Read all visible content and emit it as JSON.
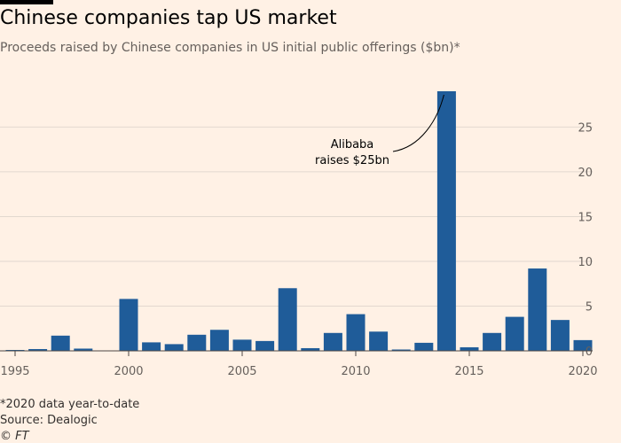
{
  "title": "Chinese companies tap US market",
  "subtitle": "Proceeds raised by Chinese companies in US initial public offerings ($bn)*",
  "footnote": "*2020 data year-to-date",
  "source": "Source: Dealogic",
  "credit": "© FT",
  "colors": {
    "bar": "#1f5c99",
    "grid": "#e2d8cf",
    "axis": "#4d4845",
    "background": "#fff1e5"
  },
  "chart_data": {
    "type": "bar",
    "x": [
      1995,
      1996,
      1997,
      1998,
      1999,
      2000,
      2001,
      2002,
      2003,
      2004,
      2005,
      2006,
      2007,
      2008,
      2009,
      2010,
      2011,
      2012,
      2013,
      2014,
      2015,
      2016,
      2017,
      2018,
      2019,
      2020
    ],
    "values": [
      0.1,
      0.2,
      1.7,
      0.25,
      0.0,
      5.8,
      0.95,
      0.75,
      1.8,
      2.35,
      1.25,
      1.1,
      7.0,
      0.3,
      2.0,
      4.1,
      2.15,
      0.15,
      0.9,
      29.0,
      0.4,
      2.0,
      3.8,
      9.2,
      3.45,
      1.2
    ],
    "xticks": [
      1995,
      2000,
      2005,
      2010,
      2015,
      2020
    ],
    "yticks": [
      0,
      5,
      10,
      15,
      20,
      25
    ],
    "ylim": [
      0,
      29
    ],
    "y_axis_side": "right",
    "grid": true,
    "annotation": {
      "lines": [
        "Alibaba",
        "raises $25bn"
      ],
      "year": 2014
    }
  }
}
